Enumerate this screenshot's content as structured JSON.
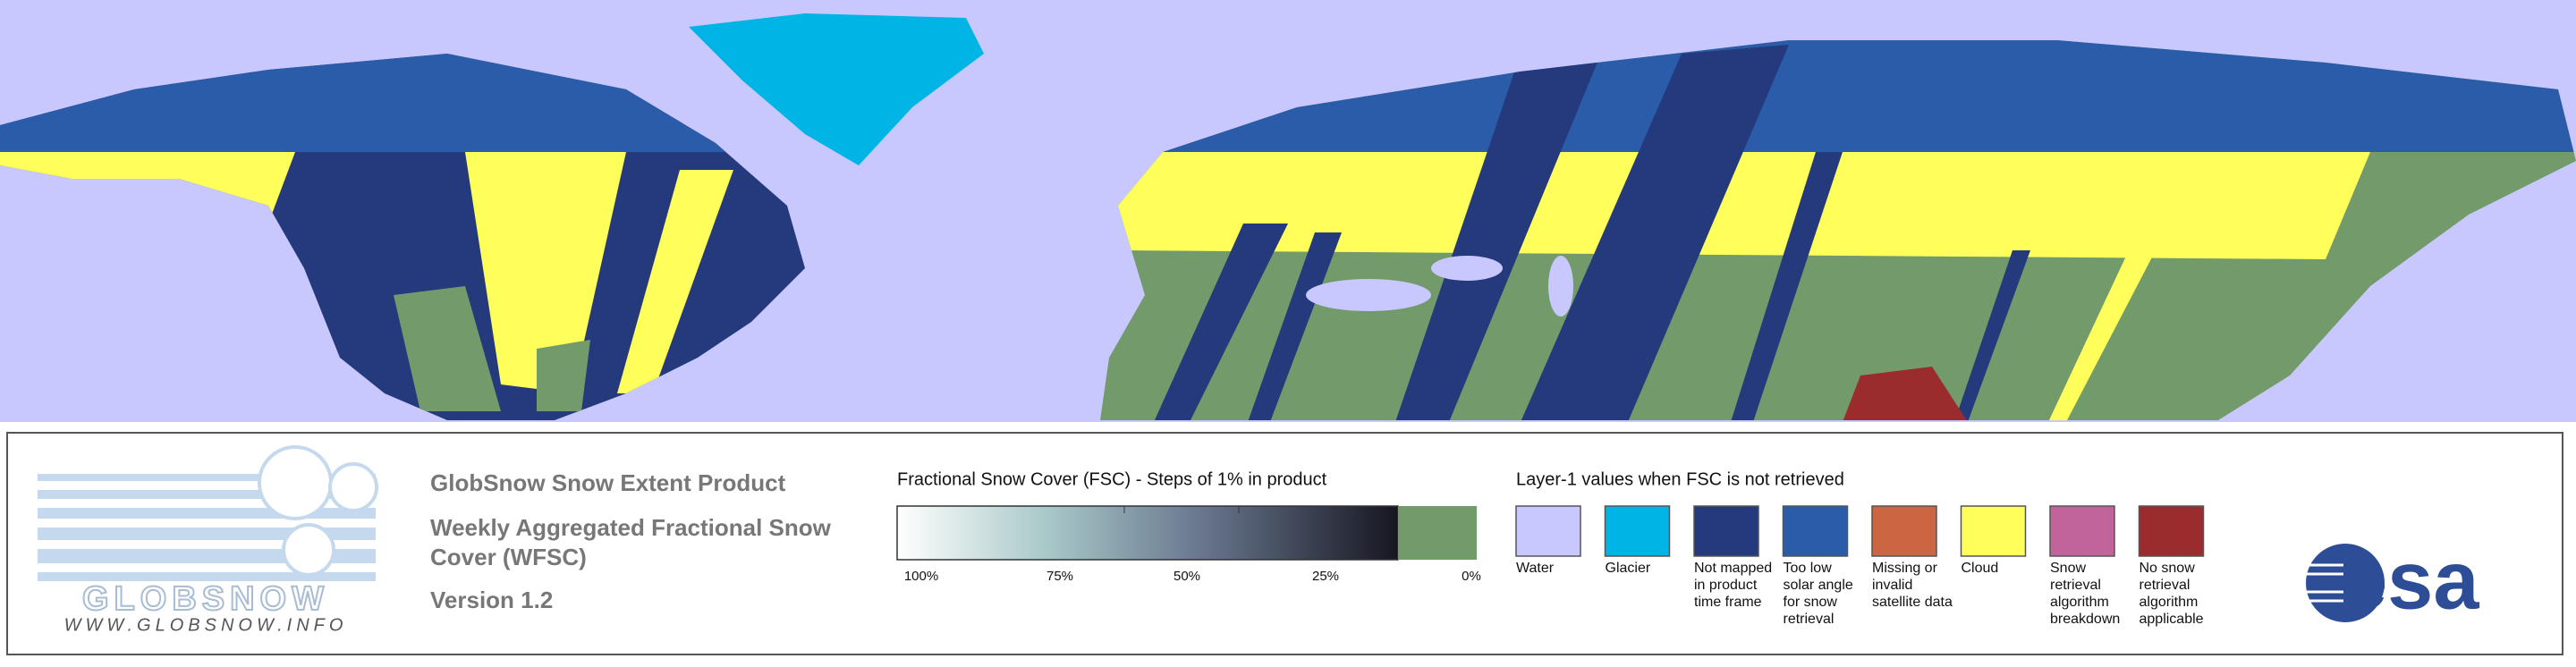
{
  "header": {
    "title": "GlobSnow Snow Extent Product",
    "subtitle": "Weekly Aggregated Fractional Snow Cover (WFSC)",
    "version": "Version 1.2"
  },
  "logo": {
    "name": "GLOBSNOW",
    "url": "WWW.GLOBSNOW.INFO"
  },
  "fsc_legend": {
    "title": "Fractional Snow Cover (FSC) - Steps of 1% in product",
    "ticks": [
      "100%",
      "75%",
      "50%",
      "25%",
      "0%"
    ]
  },
  "layer1_legend": {
    "title": "Layer-1 values when FSC is not retrieved",
    "items": [
      {
        "label": "Water",
        "color": "#c8c8ff"
      },
      {
        "label": "Glacier",
        "color": "#00b4e6"
      },
      {
        "label": "Not mapped in product time frame",
        "color": "#243a7c"
      },
      {
        "label": "Too low solar angle for snow retrieval",
        "color": "#2b5caa"
      },
      {
        "label": "Missing or invalid satellite data",
        "color": "#cc6642"
      },
      {
        "label": "Cloud",
        "color": "#ffff5c"
      },
      {
        "label": "Snow retrieval algorithm breakdown",
        "color": "#c2649c"
      },
      {
        "label": "No snow retrieval algorithm applicable",
        "color": "#9a2c2e"
      }
    ]
  },
  "esa": "esa"
}
